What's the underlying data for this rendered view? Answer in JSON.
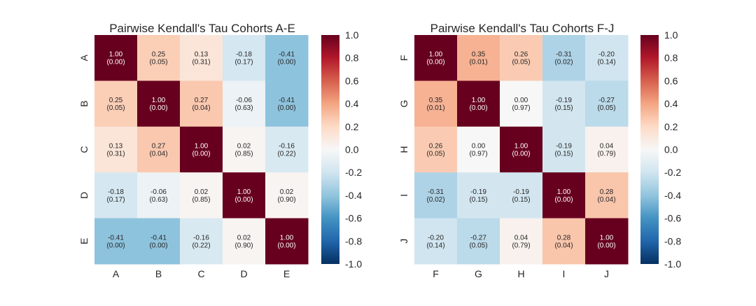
{
  "colorscale": {
    "low": "#053061",
    "mid": "#f7f7f7",
    "high": "#67001f",
    "range": [
      -1.0,
      1.0
    ]
  },
  "colorbar_ticks": [
    {
      "value": 1.0,
      "label": "1.0"
    },
    {
      "value": 0.8,
      "label": "0.8"
    },
    {
      "value": 0.6,
      "label": "0.6"
    },
    {
      "value": 0.4,
      "label": "0.4"
    },
    {
      "value": 0.2,
      "label": "0.2"
    },
    {
      "value": 0.0,
      "label": "0.0"
    },
    {
      "value": -0.2,
      "label": "-0.2"
    },
    {
      "value": -0.4,
      "label": "-0.4"
    },
    {
      "value": -0.6,
      "label": "-0.6"
    },
    {
      "value": -0.8,
      "label": "-0.8"
    },
    {
      "value": -1.0,
      "label": "-1.0"
    }
  ],
  "chart_data": [
    {
      "type": "heatmap",
      "title": "Pairwise Kendall's Tau Cohorts A-E",
      "labels": [
        "A",
        "B",
        "C",
        "D",
        "E"
      ],
      "values": [
        [
          1.0,
          0.25,
          0.13,
          -0.18,
          -0.41
        ],
        [
          0.25,
          1.0,
          0.27,
          -0.06,
          -0.41
        ],
        [
          0.13,
          0.27,
          1.0,
          0.02,
          -0.16
        ],
        [
          -0.18,
          -0.06,
          0.02,
          1.0,
          0.02
        ],
        [
          -0.41,
          -0.41,
          -0.16,
          0.02,
          1.0
        ]
      ],
      "cells": [
        [
          [
            "1.00",
            "(0.00)"
          ],
          [
            "0.25",
            "(0.05)"
          ],
          [
            "0.13",
            "(0.31)"
          ],
          [
            "-0.18",
            "(0.17)"
          ],
          [
            "-0.41",
            "(0.00)"
          ]
        ],
        [
          [
            "0.25",
            "(0.05)"
          ],
          [
            "1.00",
            "(0.00)"
          ],
          [
            "0.27",
            "(0.04)"
          ],
          [
            "-0.06",
            "(0.63)"
          ],
          [
            "-0.41",
            "(0.00)"
          ]
        ],
        [
          [
            "0.13",
            "(0.31)"
          ],
          [
            "0.27",
            "(0.04)"
          ],
          [
            "1.00",
            "(0.00)"
          ],
          [
            "0.02",
            "(0.85)"
          ],
          [
            "-0.16",
            "(0.22)"
          ]
        ],
        [
          [
            "-0.18",
            "(0.17)"
          ],
          [
            "-0.06",
            "(0.63)"
          ],
          [
            "0.02",
            "(0.85)"
          ],
          [
            "1.00",
            "(0.00)"
          ],
          [
            "0.02",
            "(0.90)"
          ]
        ],
        [
          [
            "-0.41",
            "(0.00)"
          ],
          [
            "-0.41",
            "(0.00)"
          ],
          [
            "-0.16",
            "(0.22)"
          ],
          [
            "0.02",
            "(0.90)"
          ],
          [
            "1.00",
            "(0.00)"
          ]
        ]
      ],
      "vmin": -1.0,
      "vmax": 1.0,
      "grid": false
    },
    {
      "type": "heatmap",
      "title": "Pairwise Kendall's Tau Cohorts F-J",
      "labels": [
        "F",
        "G",
        "H",
        "I",
        "J"
      ],
      "values": [
        [
          1.0,
          0.35,
          0.26,
          -0.31,
          -0.2
        ],
        [
          0.35,
          1.0,
          0.0,
          -0.19,
          -0.27
        ],
        [
          0.26,
          0.0,
          1.0,
          -0.19,
          0.04
        ],
        [
          -0.31,
          -0.19,
          -0.19,
          1.0,
          0.28
        ],
        [
          -0.2,
          -0.27,
          0.04,
          0.28,
          1.0
        ]
      ],
      "cells": [
        [
          [
            "1.00",
            "(0.00)"
          ],
          [
            "0.35",
            "(0.01)"
          ],
          [
            "0.26",
            "(0.05)"
          ],
          [
            "-0.31",
            "(0.02)"
          ],
          [
            "-0.20",
            "(0.14)"
          ]
        ],
        [
          [
            "0.35",
            "(0.01)"
          ],
          [
            "1.00",
            "(0.00)"
          ],
          [
            "0.00",
            "(0.97)"
          ],
          [
            "-0.19",
            "(0.15)"
          ],
          [
            "-0.27",
            "(0.05)"
          ]
        ],
        [
          [
            "0.26",
            "(0.05)"
          ],
          [
            "0.00",
            "(0.97)"
          ],
          [
            "1.00",
            "(0.00)"
          ],
          [
            "-0.19",
            "(0.15)"
          ],
          [
            "0.04",
            "(0.79)"
          ]
        ],
        [
          [
            "-0.31",
            "(0.02)"
          ],
          [
            "-0.19",
            "(0.15)"
          ],
          [
            "-0.19",
            "(0.15)"
          ],
          [
            "1.00",
            "(0.00)"
          ],
          [
            "0.28",
            "(0.04)"
          ]
        ],
        [
          [
            "-0.20",
            "(0.14)"
          ],
          [
            "-0.27",
            "(0.05)"
          ],
          [
            "0.04",
            "(0.79)"
          ],
          [
            "0.28",
            "(0.04)"
          ],
          [
            "1.00",
            "(0.00)"
          ]
        ]
      ],
      "vmin": -1.0,
      "vmax": 1.0,
      "grid": false
    }
  ]
}
